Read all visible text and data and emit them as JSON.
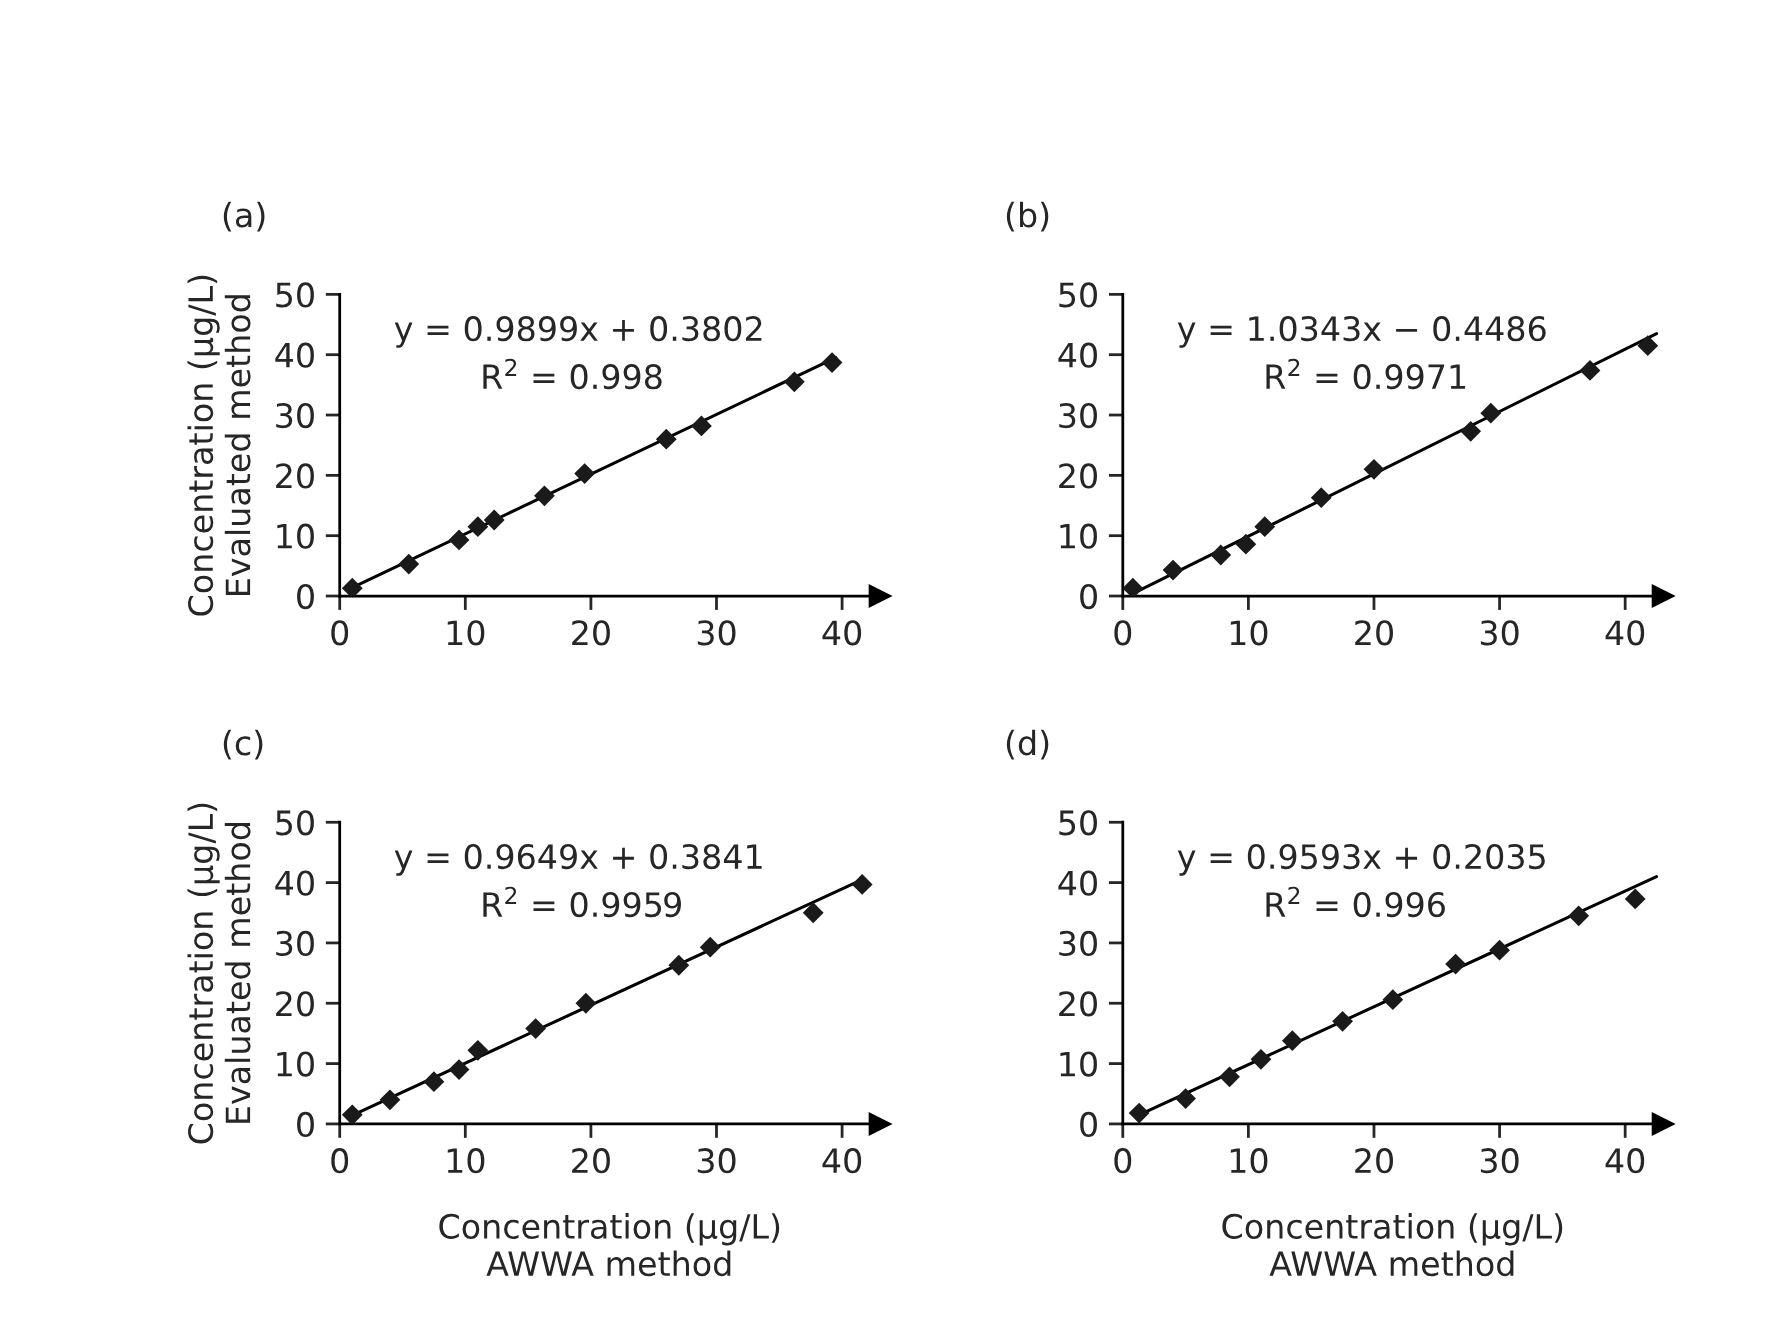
{
  "chart_data": [
    {
      "type": "scatter",
      "title": "(a)",
      "ylabel": "Concentration (μg/L)\nEvaluated method",
      "xlim": [
        0,
        43
      ],
      "ylim": [
        0,
        50
      ],
      "xticks": [
        0,
        10,
        20,
        30,
        40
      ],
      "yticks": [
        0,
        10,
        20,
        30,
        40,
        50
      ],
      "grid": false,
      "annotations": [
        "y = 0.9899x + 0.3802",
        "R$^{2}$ = 0.998"
      ],
      "series": [
        {
          "marker": "diamond",
          "color": "#1a1a1a",
          "x": [
            1,
            5.5,
            9.5,
            11,
            12.3,
            16.3,
            19.5,
            26,
            28.8,
            36.2,
            39.2
          ],
          "values": [
            1.3,
            5.3,
            9.3,
            11.5,
            12.6,
            16.6,
            20.3,
            26,
            28.2,
            35.5,
            38.7
          ]
        },
        {
          "type": "line",
          "color": "#000000",
          "line_style": "solid",
          "x": [
            1,
            39.5
          ],
          "values": [
            1.4,
            39.5
          ]
        }
      ]
    },
    {
      "type": "scatter",
      "title": "(b)",
      "xlim": [
        0,
        43
      ],
      "ylim": [
        0,
        50
      ],
      "xticks": [
        0,
        10,
        20,
        30,
        40
      ],
      "yticks": [
        0,
        10,
        20,
        30,
        40,
        50
      ],
      "grid": false,
      "annotations": [
        "y = 1.0343x − 0.4486",
        "R$^{2}$ = 0.9971"
      ],
      "series": [
        {
          "marker": "diamond",
          "color": "#1a1a1a",
          "x": [
            0.8,
            4,
            7.8,
            9.8,
            11.3,
            15.8,
            20,
            27.7,
            29.3,
            37.2,
            41.8
          ],
          "values": [
            1.3,
            4.3,
            6.8,
            8.6,
            11.5,
            16.3,
            21,
            27.3,
            30.3,
            37.4,
            41.5
          ]
        },
        {
          "type": "line",
          "color": "#000000",
          "line_style": "solid",
          "x": [
            0.8,
            42.5
          ],
          "values": [
            0.4,
            43.5
          ]
        }
      ]
    },
    {
      "type": "scatter",
      "title": "(c)",
      "xlabel": "Concentration (μg/L)\nAWWA method",
      "ylabel": "Concentration (μg/L)\nEvaluated method",
      "xlim": [
        0,
        43
      ],
      "ylim": [
        0,
        50
      ],
      "xticks": [
        0,
        10,
        20,
        30,
        40
      ],
      "yticks": [
        0,
        10,
        20,
        30,
        40,
        50
      ],
      "grid": false,
      "annotations": [
        "y = 0.9649x + 0.3841",
        "R$^{2}$ = 0.9959"
      ],
      "series": [
        {
          "marker": "diamond",
          "color": "#1a1a1a",
          "x": [
            1,
            4,
            7.5,
            9.5,
            11,
            15.6,
            19.6,
            27,
            29.5,
            37.7,
            41.6
          ],
          "values": [
            1.5,
            4.0,
            7,
            9,
            12.2,
            15.8,
            20,
            26.3,
            29.3,
            35,
            39.7
          ]
        },
        {
          "type": "line",
          "color": "#000000",
          "line_style": "solid",
          "x": [
            1,
            41.6
          ],
          "values": [
            1.4,
            40.5
          ]
        }
      ]
    },
    {
      "type": "scatter",
      "title": "(d)",
      "xlabel": "Concentration (μg/L)\nAWWA method",
      "xlim": [
        0,
        43
      ],
      "ylim": [
        0,
        50
      ],
      "xticks": [
        0,
        10,
        20,
        30,
        40
      ],
      "yticks": [
        0,
        10,
        20,
        30,
        40,
        50
      ],
      "grid": false,
      "annotations": [
        "y = 0.9593x + 0.2035",
        "R$^{2}$ = 0.996"
      ],
      "series": [
        {
          "marker": "diamond",
          "color": "#1a1a1a",
          "x": [
            1.3,
            5,
            8.5,
            11,
            13.5,
            17.5,
            21.5,
            26.5,
            30,
            36.3,
            40.8
          ],
          "values": [
            1.8,
            4.2,
            7.8,
            10.7,
            13.8,
            17,
            20.6,
            26.5,
            28.8,
            34.5,
            37.3
          ]
        },
        {
          "type": "line",
          "color": "#000000",
          "line_style": "solid",
          "x": [
            1,
            42.5
          ],
          "values": [
            1.2,
            41.0
          ]
        }
      ]
    }
  ]
}
